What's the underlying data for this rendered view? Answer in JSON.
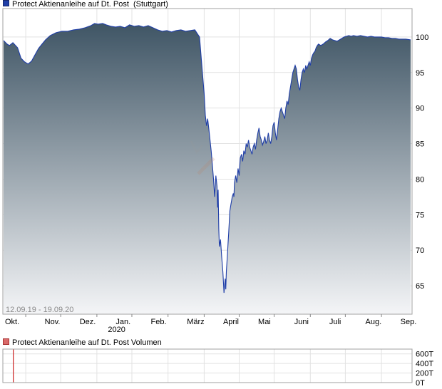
{
  "chart_data": [
    {
      "type": "area",
      "legend_entry": "Protect Aktienanleihe auf Dt. Post",
      "exchange": "(Stuttgart)",
      "period_label": "12.09.19 - 19.09.20",
      "x_tick_labels": [
        "Okt.",
        "Nov.",
        "Dez.",
        "Jan.",
        "Feb.",
        "März",
        "April",
        "Mai",
        "Juni",
        "Juli",
        "Aug.",
        "Sep."
      ],
      "x_sub_label": "2020",
      "y_ticks": [
        65,
        70,
        75,
        80,
        85,
        90,
        95,
        100
      ],
      "ylim": [
        61,
        104
      ],
      "grid": true,
      "colors": {
        "line": "#1f3ea8",
        "fill_top": "#3f5565",
        "fill_bottom": "#f4f5f7"
      },
      "series": [
        {
          "points": [
            [
              0,
              99.5
            ],
            [
              3,
              99.0
            ],
            [
              5,
              98.8
            ],
            [
              8,
              99.2
            ],
            [
              12,
              98.5
            ],
            [
              15,
              97.0
            ],
            [
              18,
              96.5
            ],
            [
              21,
              96.2
            ],
            [
              24,
              96.6
            ],
            [
              27,
              97.5
            ],
            [
              30,
              98.4
            ],
            [
              33,
              99.0
            ],
            [
              36,
              99.6
            ],
            [
              40,
              100.2
            ],
            [
              45,
              100.6
            ],
            [
              50,
              100.8
            ],
            [
              55,
              100.8
            ],
            [
              60,
              101.0
            ],
            [
              65,
              101.1
            ],
            [
              70,
              101.3
            ],
            [
              75,
              101.6
            ],
            [
              78,
              101.9
            ],
            [
              81,
              101.8
            ],
            [
              85,
              101.9
            ],
            [
              88,
              101.7
            ],
            [
              92,
              101.5
            ],
            [
              96,
              101.4
            ],
            [
              100,
              101.5
            ],
            [
              104,
              101.3
            ],
            [
              108,
              101.7
            ],
            [
              112,
              101.5
            ],
            [
              116,
              101.6
            ],
            [
              120,
              101.4
            ],
            [
              124,
              101.6
            ],
            [
              128,
              101.3
            ],
            [
              132,
              101.0
            ],
            [
              136,
              100.8
            ],
            [
              140,
              100.9
            ],
            [
              144,
              100.7
            ],
            [
              148,
              100.9
            ],
            [
              152,
              101.0
            ],
            [
              156,
              100.8
            ],
            [
              160,
              100.9
            ],
            [
              164,
              101.0
            ],
            [
              166,
              100.5
            ],
            [
              168,
              100.0
            ],
            [
              170,
              96.0
            ],
            [
              172,
              92.0
            ],
            [
              173,
              89.0
            ],
            [
              174,
              87.5
            ],
            [
              175,
              88.5
            ],
            [
              176,
              87.0
            ],
            [
              177,
              85.5
            ],
            [
              178,
              84.0
            ],
            [
              179,
              82.0
            ],
            [
              180,
              80.0
            ],
            [
              181,
              77.5
            ],
            [
              182,
              80.5
            ],
            [
              183,
              79.0
            ],
            [
              183.5,
              76.0
            ],
            [
              184,
              78.5
            ],
            [
              184.5,
              73.0
            ],
            [
              185,
              70.5
            ],
            [
              186,
              71.5
            ],
            [
              187,
              69.0
            ],
            [
              188,
              67.0
            ],
            [
              188.5,
              65.5
            ],
            [
              189,
              64.0
            ],
            [
              189.5,
              65.0
            ],
            [
              190,
              66.0
            ],
            [
              190.5,
              64.5
            ],
            [
              191,
              67.0
            ],
            [
              192,
              69.5
            ],
            [
              192.5,
              71.0
            ],
            [
              193,
              72.5
            ],
            [
              193.5,
              74.0
            ],
            [
              194,
              75.5
            ],
            [
              194.5,
              76.0
            ],
            [
              195,
              76.5
            ],
            [
              195.5,
              77.0
            ],
            [
              196,
              77.5
            ],
            [
              197,
              78.0
            ],
            [
              197.5,
              77.5
            ],
            [
              198,
              79.5
            ],
            [
              199,
              80.5
            ],
            [
              200,
              79.5
            ],
            [
              201,
              81.5
            ],
            [
              202,
              80.5
            ],
            [
              203,
              83.0
            ],
            [
              204,
              83.5
            ],
            [
              205,
              82.5
            ],
            [
              206,
              84.0
            ],
            [
              207,
              83.5
            ],
            [
              208,
              85.0
            ],
            [
              209,
              84.5
            ],
            [
              210,
              85.5
            ],
            [
              211,
              84.5
            ],
            [
              212,
              84.0
            ],
            [
              213,
              83.5
            ],
            [
              214,
              84.5
            ],
            [
              215,
              85.0
            ],
            [
              216,
              84.2
            ],
            [
              217,
              85.5
            ],
            [
              218,
              86.5
            ],
            [
              219,
              87.2
            ],
            [
              220,
              86.0
            ],
            [
              221,
              85.5
            ],
            [
              222,
              84.8
            ],
            [
              223,
              85.3
            ],
            [
              224,
              86.0
            ],
            [
              225,
              85.0
            ],
            [
              226,
              85.5
            ],
            [
              227,
              86.5
            ],
            [
              228,
              85.5
            ],
            [
              229,
              85.0
            ],
            [
              230,
              86.0
            ],
            [
              231,
              87.5
            ],
            [
              232,
              88.0
            ],
            [
              233,
              86.5
            ],
            [
              234,
              85.5
            ],
            [
              235,
              87.0
            ],
            [
              236,
              88.5
            ],
            [
              237,
              89.5
            ],
            [
              238,
              90.0
            ],
            [
              239,
              89.5
            ],
            [
              240,
              89.0
            ],
            [
              241,
              88.5
            ],
            [
              242,
              90.0
            ],
            [
              243,
              91.0
            ],
            [
              244,
              90.5
            ],
            [
              245,
              92.0
            ],
            [
              246,
              93.0
            ],
            [
              247,
              94.0
            ],
            [
              248,
              95.0
            ],
            [
              249,
              95.5
            ],
            [
              250,
              96.0
            ],
            [
              251,
              95.5
            ],
            [
              252,
              94.0
            ],
            [
              253,
              93.0
            ],
            [
              254,
              92.5
            ],
            [
              255,
              94.0
            ],
            [
              256,
              95.0
            ],
            [
              257,
              95.5
            ],
            [
              258,
              95.0
            ],
            [
              259,
              96.0
            ],
            [
              260,
              95.5
            ],
            [
              261,
              96.0
            ],
            [
              262,
              96.5
            ],
            [
              263,
              96.0
            ],
            [
              264,
              97.0
            ],
            [
              265,
              97.5
            ],
            [
              266,
              97.8
            ],
            [
              267,
              98.0
            ],
            [
              268,
              98.5
            ],
            [
              269,
              98.8
            ],
            [
              270,
              99.0
            ],
            [
              272,
              98.8
            ],
            [
              274,
              99.0
            ],
            [
              276,
              99.3
            ],
            [
              278,
              99.5
            ],
            [
              280,
              99.8
            ],
            [
              282,
              99.6
            ],
            [
              284,
              99.5
            ],
            [
              286,
              99.4
            ],
            [
              288,
              99.6
            ],
            [
              290,
              99.8
            ],
            [
              292,
              100.0
            ],
            [
              294,
              100.1
            ],
            [
              296,
              100.2
            ],
            [
              298,
              100.1
            ],
            [
              300,
              100.2
            ],
            [
              303,
              100.1
            ],
            [
              306,
              100.2
            ],
            [
              309,
              100.1
            ],
            [
              312,
              100.0
            ],
            [
              315,
              100.1
            ],
            [
              318,
              100.0
            ],
            [
              321,
              100.0
            ],
            [
              324,
              100.0
            ],
            [
              327,
              99.9
            ],
            [
              330,
              99.9
            ],
            [
              333,
              99.8
            ],
            [
              336,
              99.8
            ],
            [
              339,
              99.7
            ],
            [
              342,
              99.7
            ],
            [
              345,
              99.7
            ],
            [
              349,
              99.6
            ]
          ]
        }
      ]
    },
    {
      "type": "bar",
      "legend_entry": "Protect Aktienanleihe auf Dt. Post  Volumen",
      "y_ticks": [
        "0T",
        "200T",
        "400T",
        "600T"
      ],
      "ylim": [
        0,
        700
      ],
      "grid": true,
      "colors": {
        "bar": "#cc2222"
      },
      "series": [
        {
          "points": [
            [
              8,
              700
            ]
          ]
        }
      ]
    }
  ]
}
